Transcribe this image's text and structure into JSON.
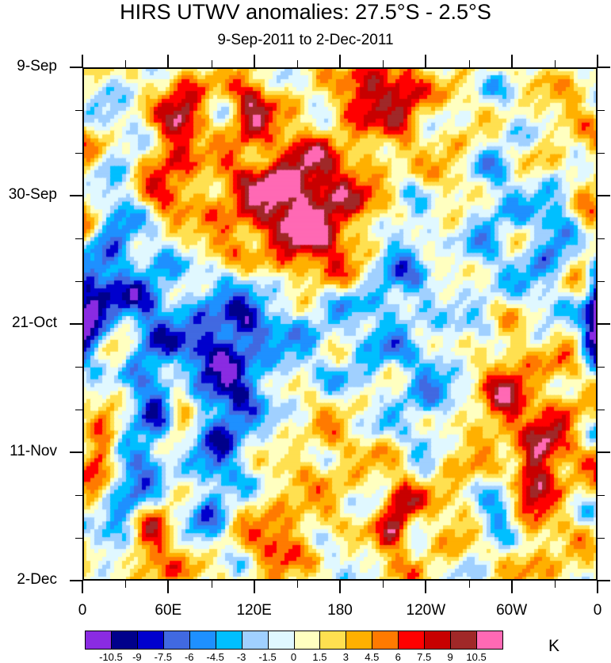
{
  "chart_data": {
    "type": "heatmap",
    "title": "HIRS UTWV anomalies: 27.5°S - 2.5°S",
    "subtitle": "9-Sep-2011 to 2-Dec-2011",
    "x_ticks": [
      "0",
      "60E",
      "120E",
      "180",
      "120W",
      "60W",
      "0"
    ],
    "x_range_deg_east": [
      0,
      360
    ],
    "y_ticks": [
      "9-Sep",
      "30-Sep",
      "21-Oct",
      "11-Nov",
      "2-Dec"
    ],
    "y_range": [
      "9-Sep-2011",
      "2-Dec-2011"
    ],
    "colorbar_levels": [
      "-10.5",
      "-9",
      "-7.5",
      "-6",
      "-4.5",
      "-3",
      "-1.5",
      "0",
      "1.5",
      "3",
      "4.5",
      "6",
      "7.5",
      "9",
      "10.5"
    ],
    "colorbar_colors": [
      "#8a2be2",
      "#00008b",
      "#0000cd",
      "#4169e1",
      "#1e90ff",
      "#00bfff",
      "#a0d0ff",
      "#e0f8ff",
      "#ffffc0",
      "#ffe050",
      "#ffb000",
      "#ff7a00",
      "#ff0000",
      "#c80000",
      "#a02828",
      "#ff69b4"
    ],
    "units": "K",
    "features": [
      {
        "x": 118,
        "y": 6,
        "v": 8,
        "w": 10,
        "h": 4
      },
      {
        "x": 70,
        "y": 6,
        "v": 8.5,
        "w": 12,
        "h": 4
      },
      {
        "x": 200,
        "y": 3,
        "v": 9,
        "w": 14,
        "h": 5
      },
      {
        "x": 225,
        "y": 5,
        "v": 8,
        "w": 10,
        "h": 4
      },
      {
        "x": 166,
        "y": 21,
        "v": 8,
        "w": 28,
        "h": 6
      },
      {
        "x": 140,
        "y": 20,
        "v": 6,
        "w": 30,
        "h": 8
      },
      {
        "x": 162,
        "y": 31,
        "v": 8,
        "w": 20,
        "h": 5
      },
      {
        "x": 60,
        "y": 18,
        "v": 7,
        "w": 14,
        "h": 6
      },
      {
        "x": 18,
        "y": 35,
        "v": -6,
        "w": 10,
        "h": 12
      },
      {
        "x": 42,
        "y": 42,
        "v": -7,
        "w": 16,
        "h": 10
      },
      {
        "x": 83,
        "y": 46,
        "v": -8,
        "w": 14,
        "h": 8
      },
      {
        "x": 3,
        "y": 42,
        "v": -8,
        "w": 6,
        "h": 4
      },
      {
        "x": 357,
        "y": 40,
        "v": -8,
        "w": 6,
        "h": 5
      },
      {
        "x": 110,
        "y": 42,
        "v": -6,
        "w": 12,
        "h": 7
      },
      {
        "x": 145,
        "y": 40,
        "v": -4,
        "w": 25,
        "h": 8
      },
      {
        "x": 226,
        "y": 30,
        "v": -5,
        "w": 14,
        "h": 9
      },
      {
        "x": 285,
        "y": 22,
        "v": -4,
        "w": 14,
        "h": 10
      },
      {
        "x": 328,
        "y": 28,
        "v": -5,
        "w": 14,
        "h": 8
      },
      {
        "x": 358,
        "y": 20,
        "v": 5,
        "w": 10,
        "h": 10
      },
      {
        "x": 12,
        "y": 63,
        "v": 8,
        "w": 8,
        "h": 5
      },
      {
        "x": 25,
        "y": 47,
        "v": 7,
        "w": 10,
        "h": 4
      },
      {
        "x": 50,
        "y": 60,
        "v": -5,
        "w": 10,
        "h": 8
      },
      {
        "x": 69,
        "y": 55,
        "v": 8,
        "w": 8,
        "h": 4
      },
      {
        "x": 107,
        "y": 56,
        "v": -6,
        "w": 14,
        "h": 6
      },
      {
        "x": 90,
        "y": 70,
        "v": -5,
        "w": 10,
        "h": 8
      },
      {
        "x": 219,
        "y": 74,
        "v": 8.5,
        "w": 8,
        "h": 5
      },
      {
        "x": 242,
        "y": 55,
        "v": -4.5,
        "w": 14,
        "h": 7
      },
      {
        "x": 296,
        "y": 53,
        "v": 7,
        "w": 12,
        "h": 6
      },
      {
        "x": 315,
        "y": 67,
        "v": 8,
        "w": 10,
        "h": 5
      },
      {
        "x": 330,
        "y": 60,
        "v": 5,
        "w": 20,
        "h": 10
      },
      {
        "x": 292,
        "y": 72,
        "v": -6,
        "w": 12,
        "h": 6
      },
      {
        "x": 30,
        "y": 72,
        "v": -5,
        "w": 12,
        "h": 6
      },
      {
        "x": 46,
        "y": 76,
        "v": 6,
        "w": 10,
        "h": 5
      },
      {
        "x": 135,
        "y": 78,
        "v": 6,
        "w": 16,
        "h": 5
      },
      {
        "x": 180,
        "y": 62,
        "v": 4,
        "w": 25,
        "h": 8
      },
      {
        "x": 175,
        "y": 20,
        "v": -2,
        "w": 15,
        "h": 12
      },
      {
        "x": 250,
        "y": 18,
        "v": 3,
        "w": 25,
        "h": 10
      },
      {
        "x": 260,
        "y": 70,
        "v": 3,
        "w": 25,
        "h": 10
      },
      {
        "x": 8,
        "y": 8,
        "v": -3,
        "w": 12,
        "h": 12
      },
      {
        "x": 340,
        "y": 8,
        "v": 3,
        "w": 20,
        "h": 8
      },
      {
        "x": 100,
        "y": 28,
        "v": 3,
        "w": 20,
        "h": 10
      },
      {
        "x": 200,
        "y": 50,
        "v": -3,
        "w": 20,
        "h": 10
      },
      {
        "x": 60,
        "y": 82,
        "v": 4,
        "w": 20,
        "h": 4
      },
      {
        "x": 320,
        "y": 82,
        "v": 3,
        "w": 25,
        "h": 4
      }
    ]
  }
}
